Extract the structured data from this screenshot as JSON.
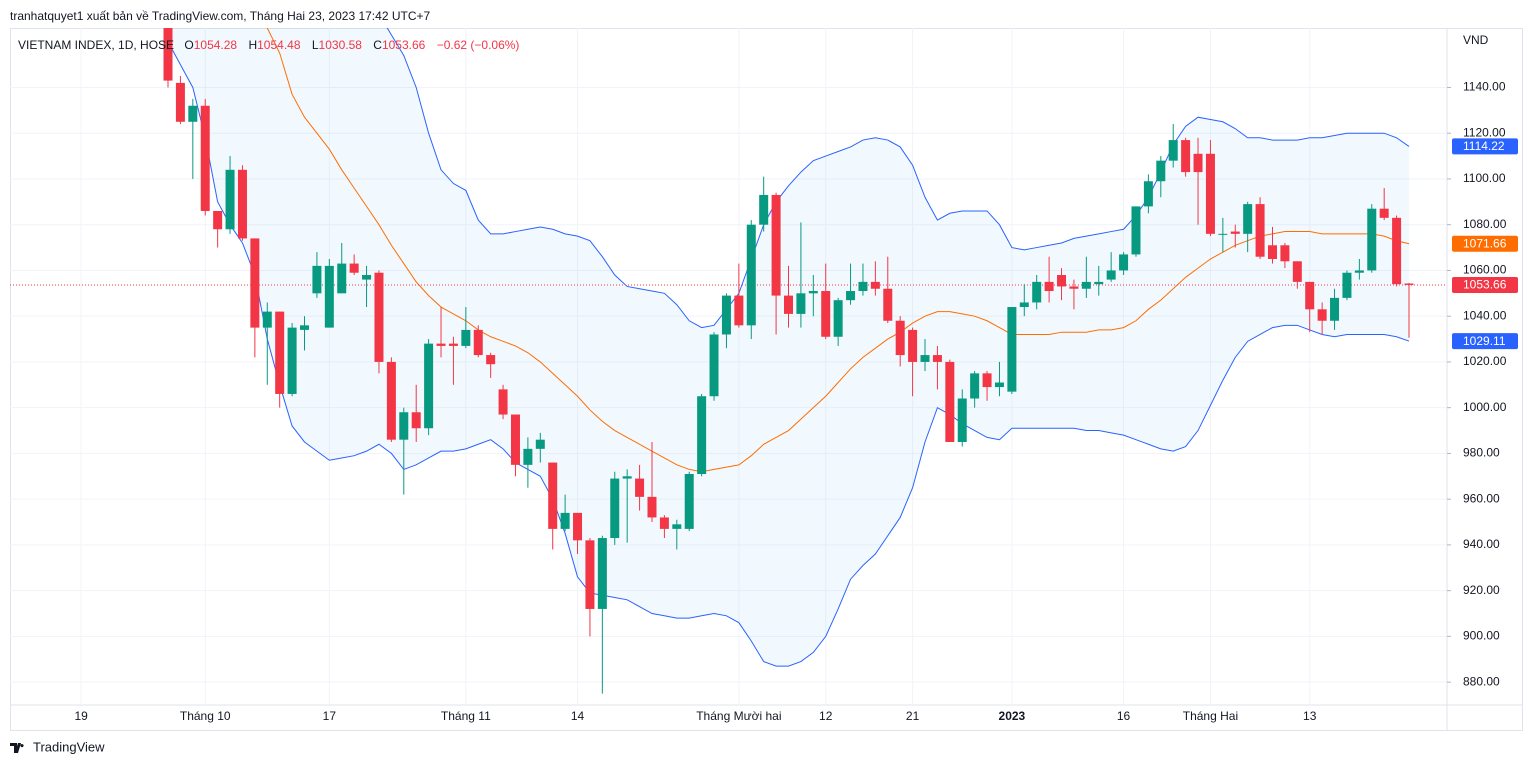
{
  "header": {
    "published": "tranhatquyet1 xuất bản về TradingView.com, Tháng Hai 23, 2023 17:42 UTC+7"
  },
  "legend": {
    "symbol": "VIETNAM INDEX, 1D, HOSE",
    "o": "O",
    "h": "H",
    "l": "L",
    "c": "C",
    "change": "−0.62 (−0.06%)"
  },
  "footer": {
    "brand": "TradingView"
  },
  "chart_data": {
    "type": "candlestick",
    "unit": "VND",
    "up_color": "#089981",
    "down_color": "#f23645",
    "grid": true,
    "ylim": [
      870,
      1166
    ],
    "yticks": [
      {
        "value": 880,
        "label": "880.00"
      },
      {
        "value": 900,
        "label": "900.00"
      },
      {
        "value": 920,
        "label": "920.00"
      },
      {
        "value": 940,
        "label": "940.00"
      },
      {
        "value": 960,
        "label": "960.00"
      },
      {
        "value": 980,
        "label": "980.00"
      },
      {
        "value": 1000,
        "label": "1000.00"
      },
      {
        "value": 1020,
        "label": "1020.00"
      },
      {
        "value": 1040,
        "label": "1040.00"
      },
      {
        "value": 1060,
        "label": "1060.00"
      },
      {
        "value": 1080,
        "label": "1080.00"
      },
      {
        "value": 1100,
        "label": "1100.00"
      },
      {
        "value": 1120,
        "label": "1120.00"
      },
      {
        "value": 1140,
        "label": "1140.00"
      }
    ],
    "categories": [
      "19",
      null,
      null,
      null,
      null,
      null,
      null,
      null,
      null,
      null,
      "Tháng 10",
      null,
      null,
      null,
      null,
      null,
      null,
      null,
      null,
      null,
      "17",
      null,
      null,
      null,
      null,
      null,
      null,
      null,
      null,
      null,
      null,
      "Tháng 11",
      null,
      null,
      null,
      null,
      null,
      null,
      null,
      null,
      "14",
      null,
      null,
      null,
      null,
      null,
      null,
      null,
      null,
      null,
      null,
      null,
      null,
      "Tháng Mười hai",
      null,
      null,
      null,
      null,
      null,
      null,
      "12",
      null,
      null,
      null,
      null,
      null,
      null,
      "21",
      null,
      null,
      null,
      null,
      null,
      null,
      null,
      "2023",
      null,
      null,
      null,
      null,
      null,
      null,
      null,
      null,
      "16",
      null,
      null,
      null,
      null,
      null,
      null,
      "Tháng Hai",
      null,
      null,
      null,
      null,
      null,
      null,
      null,
      "13",
      null,
      null,
      null,
      null,
      null,
      null,
      null,
      null
    ],
    "open": [
      null,
      null,
      null,
      null,
      null,
      null,
      null,
      1166,
      1142,
      1125,
      1132,
      1086,
      1078,
      1104,
      1074,
      1035,
      1042,
      1006,
      1034,
      1050,
      1035,
      1050,
      1063,
      1056,
      1059,
      1020,
      986,
      998,
      991,
      1028,
      1028,
      1027,
      1034,
      1023,
      1008,
      997,
      975,
      982,
      976,
      947,
      954,
      942,
      912,
      943,
      969,
      969,
      961,
      952,
      947,
      947,
      971,
      1005,
      1032,
      1049,
      1036,
      1080,
      1093,
      1049,
      1041,
      1050,
      1051,
      1031,
      1047,
      1051,
      1055,
      1052,
      1038,
      1034,
      1020,
      1023,
      1020,
      985,
      1004,
      1015,
      1009,
      1007,
      1044,
      1046,
      1055,
      1058,
      1053,
      1052,
      1054,
      1056,
      1060,
      1067,
      1088,
      1099,
      1108,
      1117,
      1111,
      1111,
      1076,
      1077,
      1076,
      1089,
      1071,
      1071,
      1064,
      1055,
      1043,
      1038,
      1048,
      1059,
      1060,
      1087,
      1083,
      1054.28
    ],
    "high": [
      null,
      null,
      null,
      null,
      null,
      null,
      null,
      1170,
      1145,
      1135,
      1135,
      1086,
      1110,
      1106,
      1074,
      1046,
      1042,
      1037,
      1040,
      1068,
      1065,
      1072,
      1067,
      1062,
      1060,
      1022,
      1000,
      1010,
      1030,
      1044,
      1031,
      1044,
      1036,
      1024,
      1010,
      997,
      987,
      989,
      976,
      962,
      954,
      943,
      944,
      972,
      973,
      975,
      985,
      953,
      951,
      972,
      1006,
      1033,
      1050,
      1063,
      1082,
      1101,
      1094,
      1062,
      1081,
      1058,
      1063,
      1048,
      1063,
      1063,
      1064,
      1066,
      1040,
      1035,
      1030,
      1027,
      1021,
      1008,
      1016,
      1016,
      1020,
      1044,
      1054,
      1058,
      1066,
      1061,
      1056,
      1066,
      1062,
      1068,
      1068,
      1088,
      1102,
      1110,
      1124,
      1118,
      1118,
      1117,
      1083,
      1080,
      1090,
      1092,
      1079,
      1072,
      1064,
      1055,
      1046,
      1052,
      1060,
      1065,
      1089,
      1096,
      1084,
      1054.48
    ],
    "low": [
      null,
      null,
      null,
      null,
      null,
      null,
      null,
      1140,
      1124,
      1100,
      1084,
      1070,
      1076,
      1073,
      1022,
      1010,
      1000,
      1005,
      1025,
      1048,
      1035,
      1050,
      1058,
      1044,
      1015,
      985,
      962,
      985,
      988,
      1022,
      1010,
      1026,
      1022,
      1013,
      995,
      970,
      965,
      976,
      938,
      946,
      936,
      900,
      875,
      940,
      941,
      955,
      950,
      943,
      938,
      946,
      970,
      1003,
      1026,
      1035,
      1030,
      1077,
      1032,
      1035,
      1035,
      1040,
      1030,
      1027,
      1045,
      1049,
      1049,
      1037,
      1018,
      1005,
      1016,
      1008,
      985,
      983,
      1000,
      1003,
      1005,
      1006,
      1040,
      1043,
      1046,
      1047,
      1043,
      1048,
      1049,
      1055,
      1058,
      1066,
      1085,
      1092,
      1105,
      1101,
      1080,
      1075,
      1068,
      1070,
      1068,
      1065,
      1063,
      1061,
      1052,
      1033,
      1032,
      1034,
      1047,
      1056,
      1059,
      1082,
      1053,
      1030.58
    ],
    "close": [
      null,
      null,
      null,
      null,
      null,
      null,
      null,
      1143,
      1125,
      1132,
      1086,
      1078,
      1104,
      1074,
      1035,
      1042,
      1006,
      1035,
      1036,
      1062,
      1062,
      1063,
      1059,
      1058,
      1020,
      986,
      998,
      991,
      1028,
      1027,
      1027,
      1034,
      1023,
      1019,
      997,
      975,
      982,
      986,
      947,
      954,
      942,
      912,
      943,
      969,
      970,
      961,
      952,
      947,
      949,
      971,
      1005,
      1032,
      1049,
      1036,
      1080,
      1093,
      1049,
      1041,
      1050,
      1051,
      1031,
      1047,
      1051,
      1055,
      1052,
      1038,
      1023,
      1020,
      1023,
      1020,
      985,
      1004,
      1015,
      1009,
      1011,
      1044,
      1046,
      1055,
      1051,
      1053,
      1052,
      1055,
      1055,
      1060,
      1067,
      1088,
      1099,
      1108,
      1117,
      1103,
      1103,
      1076,
      1076,
      1076,
      1089,
      1066,
      1065,
      1064,
      1055,
      1043,
      1038,
      1048,
      1059,
      1060,
      1087,
      1083,
      1054,
      1053.66
    ],
    "bands": {
      "upper_color": "#2962ff",
      "basis_color": "#ff6d00",
      "lower_color": "#2962ff",
      "fill": "rgba(33,150,243,0.06)",
      "upper": [
        null,
        null,
        null,
        null,
        null,
        null,
        null,
        1300,
        1295,
        1290,
        1285,
        1280,
        1275,
        1268,
        1262,
        1255,
        1248,
        1240,
        1232,
        1224,
        1215,
        1205,
        1195,
        1184,
        1172,
        1163,
        1154,
        1140,
        1120,
        1104,
        1098,
        1095,
        1082,
        1076,
        1076,
        1077,
        1078,
        1079,
        1078,
        1076,
        1075,
        1073,
        1066,
        1058,
        1053,
        1052,
        1051,
        1050,
        1045,
        1038,
        1035,
        1036,
        1043,
        1050,
        1065,
        1080,
        1090,
        1097,
        1103,
        1108,
        1110,
        1112,
        1114,
        1117,
        1118,
        1117,
        1114,
        1106,
        1092,
        1082,
        1085,
        1086,
        1086,
        1086,
        1080,
        1070,
        1069,
        1070,
        1071,
        1072,
        1074,
        1075,
        1076,
        1077,
        1078,
        1084,
        1092,
        1103,
        1115,
        1123,
        1127,
        1126,
        1125,
        1122,
        1118,
        1118,
        1117,
        1117,
        1117,
        1118,
        1118,
        1119,
        1120,
        1120,
        1120,
        1120,
        1118,
        1114.22
      ],
      "basis": [
        null,
        null,
        null,
        null,
        null,
        null,
        null,
        1205,
        1200,
        1195,
        1190,
        1186,
        1182,
        1177,
        1172,
        1166,
        1155,
        1137,
        1127,
        1120,
        1113,
        1104,
        1096,
        1088,
        1080,
        1071,
        1063,
        1055,
        1049,
        1044,
        1041,
        1038,
        1034,
        1031,
        1029,
        1027,
        1024,
        1020,
        1015,
        1010,
        1005,
        999,
        994,
        990,
        987,
        984,
        981,
        978,
        975,
        973,
        972,
        973,
        974,
        975,
        979,
        984,
        987,
        990,
        995,
        1000,
        1005,
        1011,
        1017,
        1022,
        1026,
        1030,
        1033,
        1037,
        1040,
        1042,
        1042,
        1041,
        1040,
        1038,
        1035,
        1032,
        1032,
        1032,
        1032,
        1033,
        1033,
        1033,
        1034,
        1034,
        1035,
        1038,
        1043,
        1047,
        1052,
        1057,
        1061,
        1065,
        1068,
        1071,
        1073,
        1075,
        1076,
        1077,
        1077,
        1077,
        1076,
        1076,
        1076,
        1076,
        1076,
        1075,
        1073,
        1071.66
      ],
      "lower": [
        null,
        null,
        null,
        null,
        null,
        null,
        null,
        1160,
        1150,
        1140,
        1118,
        1090,
        1080,
        1072,
        1058,
        1030,
        1010,
        992,
        985,
        981,
        977,
        978,
        979,
        981,
        984,
        980,
        973,
        975,
        978,
        981,
        981,
        982,
        984,
        986,
        982,
        976,
        973,
        970,
        960,
        945,
        926,
        919,
        918,
        917,
        916,
        913,
        910,
        909,
        908,
        908,
        909,
        910,
        909,
        906,
        898,
        889,
        887,
        887,
        889,
        893,
        900,
        912,
        925,
        931,
        936,
        944,
        952,
        965,
        985,
        1000,
        997,
        993,
        990,
        987,
        986,
        991,
        991,
        991,
        991,
        991,
        991,
        990,
        990,
        989,
        988,
        986,
        984,
        982,
        981,
        983,
        990,
        1001,
        1012,
        1022,
        1029,
        1032,
        1035,
        1036,
        1036,
        1034,
        1032,
        1031,
        1032,
        1032,
        1032,
        1032,
        1031,
        1029.11
      ]
    }
  }
}
